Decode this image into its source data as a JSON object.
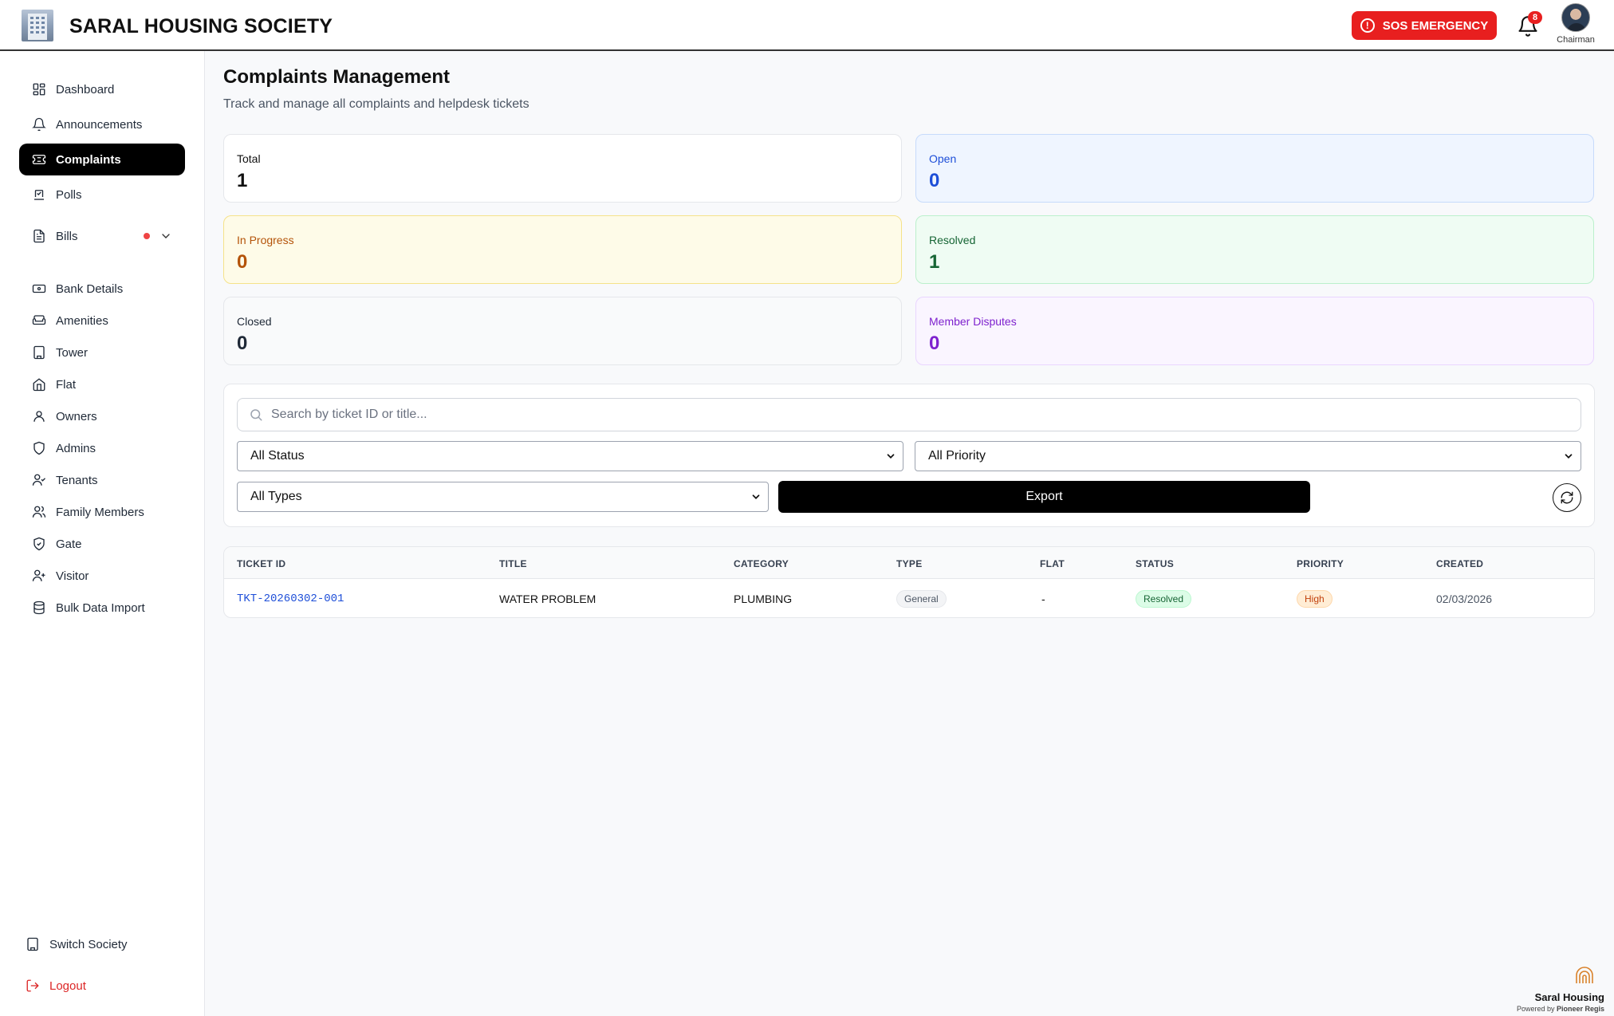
{
  "header": {
    "title": "SARAL HOUSING SOCIETY",
    "sos_label": "SOS EMERGENCY",
    "notification_count": "8",
    "user_role": "Chairman"
  },
  "sidebar": {
    "items": [
      {
        "label": "Dashboard",
        "icon": "dashboard-icon"
      },
      {
        "label": "Announcements",
        "icon": "bell-icon"
      },
      {
        "label": "Complaints",
        "icon": "ticket-icon",
        "active": true
      },
      {
        "label": "Polls",
        "icon": "poll-icon"
      },
      {
        "label": "Bills",
        "icon": "file-icon"
      },
      {
        "label": "Bank Details",
        "icon": "banknote-icon"
      },
      {
        "label": "Amenities",
        "icon": "sofa-icon"
      },
      {
        "label": "Tower",
        "icon": "building-icon"
      },
      {
        "label": "Flat",
        "icon": "home-icon"
      },
      {
        "label": "Owners",
        "icon": "user-icon"
      },
      {
        "label": "Admins",
        "icon": "shield-icon"
      },
      {
        "label": "Tenants",
        "icon": "user-check-icon"
      },
      {
        "label": "Family Members",
        "icon": "users-icon"
      },
      {
        "label": "Gate",
        "icon": "shield-check-icon"
      },
      {
        "label": "Visitor",
        "icon": "user-plus-icon"
      },
      {
        "label": "Bulk Data Import",
        "icon": "database-icon"
      }
    ],
    "switch_society": "Switch Society",
    "logout": "Logout"
  },
  "main": {
    "title": "Complaints Management",
    "subtitle": "Track and manage all complaints and helpdesk tickets",
    "stats": [
      {
        "label": "Total",
        "value": "1",
        "color": "#111111",
        "bg": "#ffffff",
        "border": "#e5e7eb"
      },
      {
        "label": "Open",
        "value": "0",
        "color": "#1d4ed8",
        "bg": "#eff5ff",
        "border": "#c7dbfb"
      },
      {
        "label": "In Progress",
        "value": "0",
        "color": "#b45309",
        "bg": "#fefbe8",
        "border": "#f5e28a"
      },
      {
        "label": "Resolved",
        "value": "1",
        "color": "#166534",
        "bg": "#effcf3",
        "border": "#bbf0cc"
      },
      {
        "label": "Closed",
        "value": "0",
        "color": "#1f2937",
        "bg": "#f9fafb",
        "border": "#e5e7eb"
      },
      {
        "label": "Member Disputes",
        "value": "0",
        "color": "#7e22ce",
        "bg": "#faf5ff",
        "border": "#e9d5ff"
      }
    ],
    "search": {
      "placeholder": "Search by ticket ID or title...",
      "value": ""
    },
    "filters": {
      "status": "All Status",
      "priority": "All Priority",
      "type": "All Types"
    },
    "export_label": "Export",
    "table": {
      "columns": [
        "TICKET ID",
        "TITLE",
        "CATEGORY",
        "TYPE",
        "FLAT",
        "STATUS",
        "PRIORITY",
        "CREATED"
      ],
      "rows": [
        {
          "ticket_id": "TKT-20260302-001",
          "title": "WATER PROBLEM",
          "category": "PLUMBING",
          "type": "General",
          "flat": "-",
          "status": "Resolved",
          "priority": "High",
          "created": "02/03/2026"
        }
      ]
    }
  },
  "footer": {
    "brand": "Saral Housing",
    "powered_by_prefix": "Powered by ",
    "powered_by_name": "Pioneer Regis"
  }
}
